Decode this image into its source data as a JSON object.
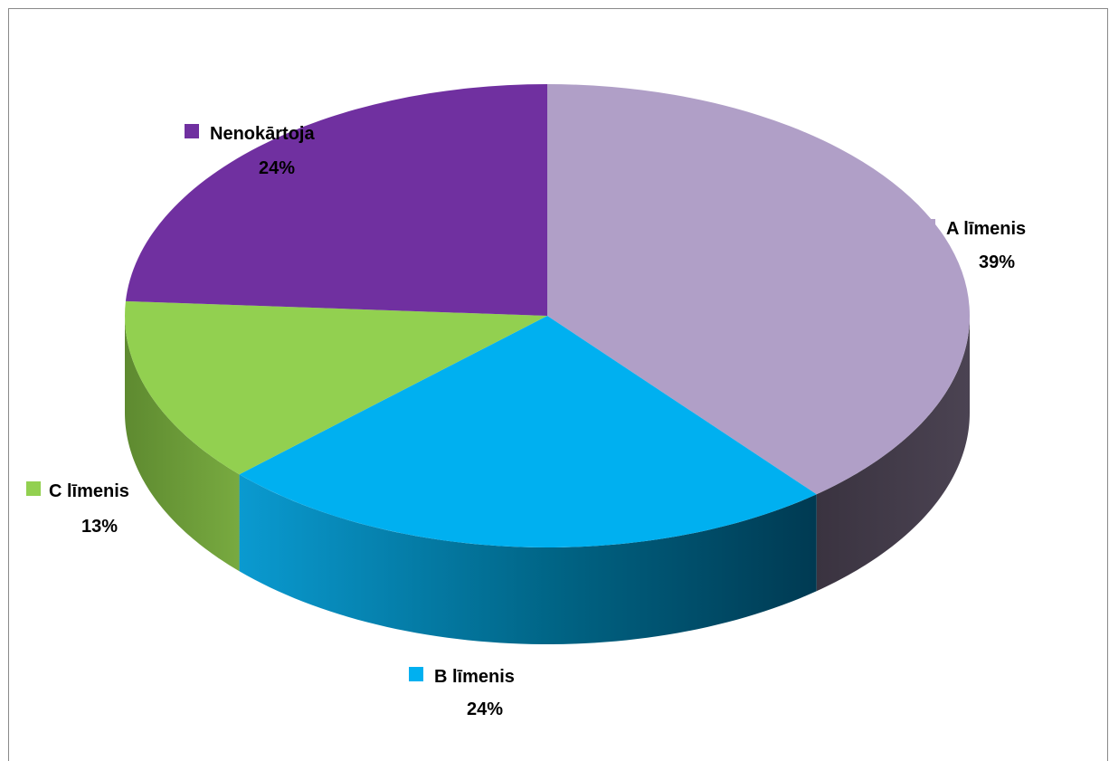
{
  "chart_data": {
    "type": "pie",
    "three_d": true,
    "title": "",
    "categories": [
      "A līmenis",
      "B līmenis",
      "C līmenis",
      "Nenokārtoja"
    ],
    "values": [
      39,
      24,
      13,
      24
    ],
    "value_labels": [
      "39%",
      "24%",
      "13%",
      "24%"
    ],
    "colors": [
      "#b09fc7",
      "#00b0f0",
      "#92d050",
      "#7030a0"
    ],
    "start_angle_deg": 90,
    "direction": "clockwise",
    "legend": "none"
  }
}
